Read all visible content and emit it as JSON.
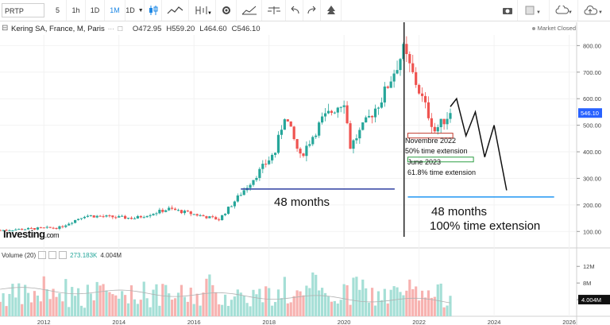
{
  "toolbar": {
    "symbol": "PRTP",
    "intervals": [
      "5",
      "1h",
      "1D",
      "1M",
      "1D"
    ],
    "active_interval": "1M",
    "icons": [
      "candles-icon",
      "line-icon",
      "indicator-icon",
      "settings-icon",
      "compare-icon",
      "balance-icon",
      "undo-icon",
      "redo-icon",
      "tree-icon"
    ],
    "right_icons": [
      "camera-icon",
      "color-icon",
      "cloud-icon",
      "cloud-upload-icon"
    ]
  },
  "header": {
    "title": "Kering SA, France, M, Paris",
    "open": "O472.95",
    "high": "H559.20",
    "low": "L464.60",
    "close": "C546.10",
    "status": "Market Closed"
  },
  "logo": {
    "brand": "Investing",
    "suffix": ".com"
  },
  "volume": {
    "label": "Volume (20)",
    "value": "273.183K",
    "ma": "4.004M",
    "axis_ticks": [
      "12M",
      "8M",
      "4M"
    ],
    "last_label": "4.004M"
  },
  "chart_data": {
    "type": "candlestick",
    "symbol": "Kering SA, France, M, Paris",
    "timeframe": "monthly",
    "x_ticks": [
      "2012",
      "2014",
      "2016",
      "2018",
      "2020",
      "2022",
      "2024",
      "2026"
    ],
    "y_ticks": [
      100,
      200,
      300,
      400,
      500,
      600,
      700,
      800
    ],
    "ylim": [
      50,
      840
    ],
    "last_price": "546.10",
    "price_key_points": [
      {
        "date": "2010-11",
        "price": 105
      },
      {
        "date": "2012-06",
        "price": 115
      },
      {
        "date": "2013-02",
        "price": 160
      },
      {
        "date": "2014-06",
        "price": 150
      },
      {
        "date": "2015-05",
        "price": 185
      },
      {
        "date": "2016-09",
        "price": 145
      },
      {
        "date": "2017-06",
        "price": 270
      },
      {
        "date": "2018-03",
        "price": 400
      },
      {
        "date": "2018-06",
        "price": 540
      },
      {
        "date": "2018-11",
        "price": 380
      },
      {
        "date": "2019-06",
        "price": 520
      },
      {
        "date": "2020-01",
        "price": 595
      },
      {
        "date": "2020-03",
        "price": 420
      },
      {
        "date": "2021-01",
        "price": 600
      },
      {
        "date": "2021-08",
        "price": 780
      },
      {
        "date": "2022-06",
        "price": 480
      },
      {
        "date": "2022-11",
        "price": 546
      }
    ],
    "annotations": [
      {
        "text": "48 months",
        "style": "large"
      },
      {
        "text": "Novembre 2022",
        "style": "small"
      },
      {
        "text": "50% time extension",
        "style": "small"
      },
      {
        "text": "June 2023",
        "style": "small"
      },
      {
        "text": "61.8% time extension",
        "style": "small"
      },
      {
        "text": "48 months",
        "style": "large"
      },
      {
        "text": "100% time extension",
        "style": "large"
      }
    ],
    "projection_zigzag": [
      {
        "date": "2022-11",
        "price": 570
      },
      {
        "date": "2023-01",
        "price": 600
      },
      {
        "date": "2023-04",
        "price": 460
      },
      {
        "date": "2023-07",
        "price": 550
      },
      {
        "date": "2023-10",
        "price": 380
      },
      {
        "date": "2024-01",
        "price": 500
      },
      {
        "date": "2024-05",
        "price": 255
      }
    ],
    "volume_ma_level": 4.004
  }
}
